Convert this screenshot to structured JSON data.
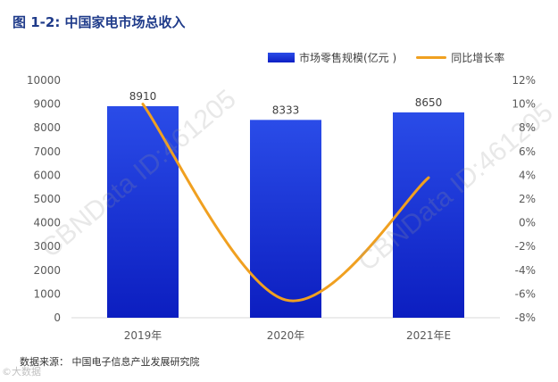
{
  "title": "图 1-2: 中国家电市场总收入",
  "legend": {
    "bar_label": "市场零售规模(亿元 )",
    "line_label": "同比增长率"
  },
  "source": "数据来源： 中国电子信息产业发展研究院",
  "watermark": "CBNData ID:461205",
  "corner_logo": "©大数据",
  "colors": {
    "bar": "#1a35d8",
    "line": "#f0a020",
    "title": "#1f3b8a"
  },
  "chart_data": {
    "type": "bar",
    "categories": [
      "2019年",
      "2020年",
      "2021年E"
    ],
    "series": [
      {
        "name": "市场零售规模(亿元 )",
        "type": "bar",
        "axis": "left",
        "values": [
          8910,
          8333,
          8650
        ]
      },
      {
        "name": "同比增长率",
        "type": "line",
        "axis": "right",
        "smooth": true,
        "values": [
          10,
          -6.5,
          3.8
        ]
      }
    ],
    "left_axis": {
      "ylim": [
        0,
        10000
      ],
      "ticks": [
        "0",
        "1000",
        "2000",
        "3000",
        "4000",
        "5000",
        "6000",
        "7000",
        "8000",
        "9000",
        "10000"
      ]
    },
    "right_axis": {
      "ylim": [
        -8,
        12
      ],
      "ticks": [
        "-8%",
        "-6%",
        "-4%",
        "-2%",
        "0%",
        "2%",
        "4%",
        "6%",
        "8%",
        "10%",
        "12%"
      ]
    },
    "bar_labels": [
      "8910",
      "8333",
      "8650"
    ],
    "grid": false,
    "legend_position": "top-right"
  }
}
